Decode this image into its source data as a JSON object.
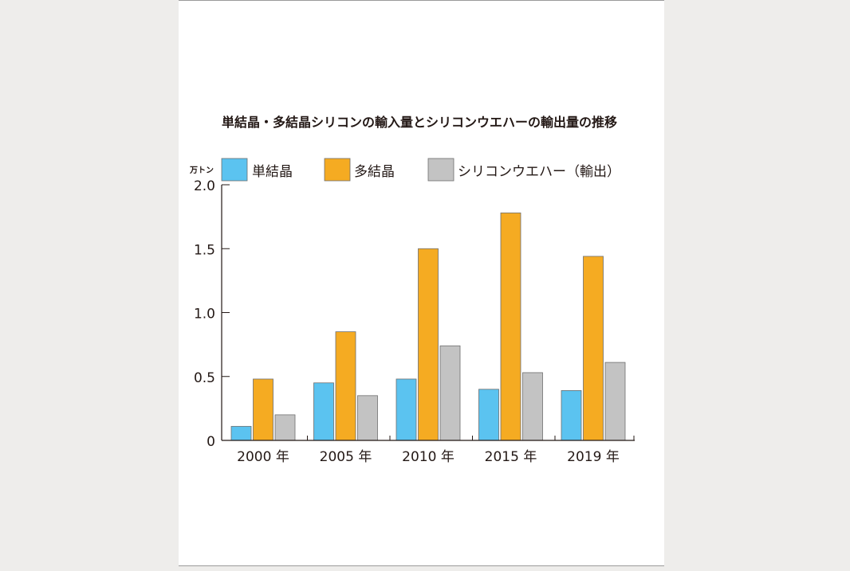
{
  "chart_data": {
    "type": "bar",
    "title": "単結晶・多結晶シリコンの輸入量とシリコンウエハーの輸出量の推移",
    "ylabel": "万トン",
    "ylim": [
      0,
      2.0
    ],
    "yticks": [
      "0",
      "0.5",
      "1.0",
      "1.5",
      "2.0"
    ],
    "ytick_values": [
      0,
      0.5,
      1.0,
      1.5,
      2.0
    ],
    "categories": [
      "2000 年",
      "2005 年",
      "2010 年",
      "2015 年",
      "2019 年"
    ],
    "series": [
      {
        "name": "単結晶",
        "color": "#5bc3f0",
        "values": [
          0.11,
          0.45,
          0.48,
          0.4,
          0.39
        ]
      },
      {
        "name": "多結晶",
        "color": "#f5ab22",
        "values": [
          0.48,
          0.85,
          1.5,
          1.78,
          1.44
        ]
      },
      {
        "name": "シリコンウエハー（輸出）",
        "color": "#c3c3c3",
        "values": [
          0.2,
          0.35,
          0.74,
          0.53,
          0.61
        ]
      }
    ],
    "legend_position": "top",
    "grid": false
  }
}
